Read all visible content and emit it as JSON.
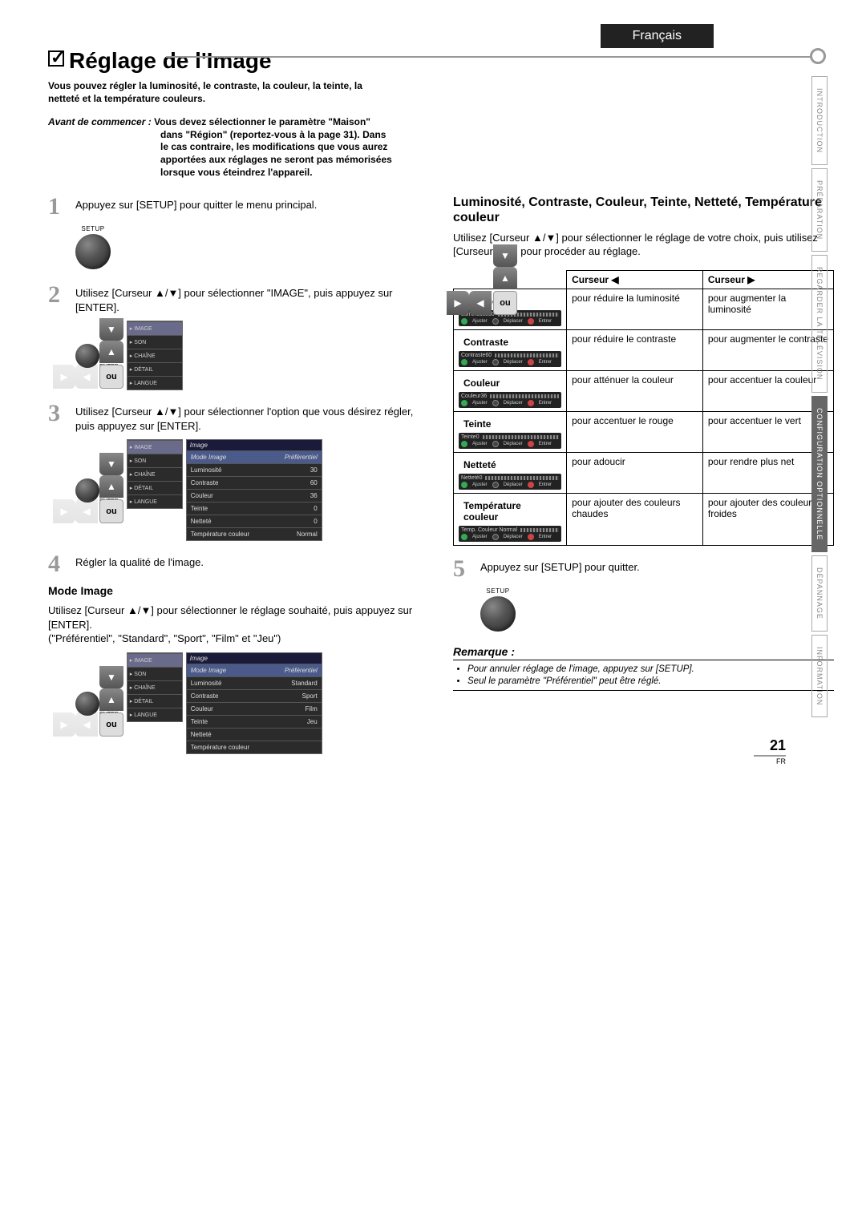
{
  "lang_tab": "Français",
  "side_tabs": [
    "INTRODUCTION",
    "PRÉPARATION",
    "REGARDER LA TÉLÉVISION",
    "CONFIGURATION OPTIONNELLE",
    "DÉPANNAGE",
    "INFORMATION"
  ],
  "active_side_tab": 3,
  "title": "Réglage de l'Image",
  "intro": "Vous pouvez régler la luminosité, le contraste, la couleur, la teinte, la netteté et la température couleurs.",
  "avant_label": "Avant de commencer :",
  "avant_line1": "Vous devez sélectionner le paramètre \"Maison\"",
  "avant_rest": "dans \"Région\" (reportez-vous à la page 31). Dans le cas contraire, les modifications que vous aurez apportées aux réglages ne seront pas mémorisées lorsque vous éteindrez l'appareil.",
  "steps": {
    "s1": "Appuyez sur [SETUP] pour quitter le menu principal.",
    "s2": "Utilisez [Curseur ▲/▼] pour sélectionner \"IMAGE\", puis appuyez sur [ENTER].",
    "s3": "Utilisez [Curseur ▲/▼] pour sélectionner l'option que vous désirez régler, puis appuyez sur [ENTER].",
    "s4": "Régler la qualité de l'image.",
    "s5": "Appuyez sur [SETUP] pour quitter."
  },
  "setup_label": "SETUP",
  "enter_label": "ENTER",
  "ou": "ou",
  "osd_side": [
    "IMAGE",
    "SON",
    "CHAÎNE",
    "DÉTAIL",
    "LANGUE"
  ],
  "osd_image_hdr": "Image",
  "osd_image_rows": [
    {
      "l": "Mode Image",
      "v": "Préférentiel"
    },
    {
      "l": "Luminosité",
      "v": "30"
    },
    {
      "l": "Contraste",
      "v": "60"
    },
    {
      "l": "Couleur",
      "v": "36"
    },
    {
      "l": "Teinte",
      "v": "0"
    },
    {
      "l": "Netteté",
      "v": "0"
    },
    {
      "l": "Température couleur",
      "v": "Normal"
    }
  ],
  "osd_mode_rows": [
    {
      "l": "Mode Image",
      "v": "Préférentiel"
    },
    {
      "l": "Luminosité",
      "v": "Standard"
    },
    {
      "l": "Contraste",
      "v": "Sport"
    },
    {
      "l": "Couleur",
      "v": "Film"
    },
    {
      "l": "Teinte",
      "v": "Jeu"
    },
    {
      "l": "Netteté",
      "v": ""
    },
    {
      "l": "Température couleur",
      "v": ""
    }
  ],
  "mode_image_head": "Mode Image",
  "mode_image_text": "Utilisez [Curseur ▲/▼] pour sélectionner le réglage souhaité, puis appuyez sur [ENTER].",
  "mode_image_opts": "(\"Préférentiel\", \"Standard\", \"Sport\", \"Film\" et \"Jeu\")",
  "right_head": "Luminosité, Contraste, Couleur, Teinte, Netteté, Température couleur",
  "right_text": "Utilisez [Curseur ▲/▼] pour sélectionner le réglage de votre choix, puis utilisez [Curseur ◀/▶] pour procéder au réglage.",
  "table": {
    "h_left": "Curseur ◀",
    "h_right": "Curseur ▶",
    "rows": [
      {
        "label": "Luminosité",
        "osd": "Luminosité",
        "val": "30",
        "left": "pour réduire la luminosité",
        "right": "pour augmenter la luminosité"
      },
      {
        "label": "Contraste",
        "osd": "Contraste",
        "val": "60",
        "left": "pour réduire le contraste",
        "right": "pour augmenter le contraste"
      },
      {
        "label": "Couleur",
        "osd": "Couleur",
        "val": "36",
        "left": "pour atténuer la couleur",
        "right": "pour accentuer la couleur"
      },
      {
        "label": "Teinte",
        "osd": "Teinte",
        "val": "0",
        "left": "pour accentuer le rouge",
        "right": "pour accentuer le vert"
      },
      {
        "label": "Netteté",
        "osd": "Netteté",
        "val": "0",
        "left": "pour adoucir",
        "right": "pour rendre plus net"
      },
      {
        "label": "Température couleur",
        "osd": "Temp. Couleur Normal",
        "val": "",
        "left": "pour ajouter des couleurs chaudes",
        "right": "pour ajouter des couleurs froides"
      }
    ],
    "ajuster": "Ajuster",
    "deplacer": "Déplacer",
    "entrer": "Entrer"
  },
  "remarque": {
    "title": "Remarque :",
    "items": [
      "Pour annuler réglage de l'image, appuyez sur [SETUP].",
      "Seul le paramètre \"Préférentiel\" peut être réglé."
    ]
  },
  "page_number": "21",
  "page_lang": "FR"
}
